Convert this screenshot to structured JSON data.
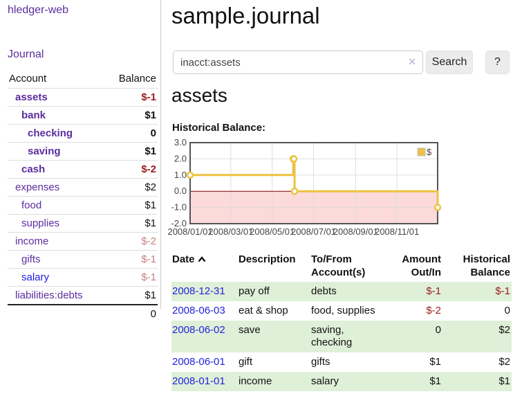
{
  "sidebar": {
    "brand": "hledger-web",
    "nav_journal": "Journal",
    "accounts_table": {
      "headers": {
        "account": "Account",
        "balance": "Balance"
      },
      "rows": [
        {
          "name": "assets",
          "depth": 1,
          "bold": true,
          "negative": true,
          "balance": "$-1"
        },
        {
          "name": "bank",
          "depth": 2,
          "bold": true,
          "negative": false,
          "balance": "$1"
        },
        {
          "name": "checking",
          "depth": 3,
          "bold": true,
          "negative": false,
          "balance": "0"
        },
        {
          "name": "saving",
          "depth": 3,
          "bold": true,
          "negative": false,
          "balance": "$1"
        },
        {
          "name": "cash",
          "depth": 2,
          "bold": true,
          "negative": true,
          "balance": "$-2"
        },
        {
          "name": "expenses",
          "depth": 1,
          "bold": false,
          "negative": false,
          "balance": "$2"
        },
        {
          "name": "food",
          "depth": 2,
          "bold": false,
          "negative": false,
          "balance": "$1"
        },
        {
          "name": "supplies",
          "depth": 2,
          "bold": false,
          "negative": false,
          "balance": "$1"
        },
        {
          "name": "income",
          "depth": 1,
          "bold": false,
          "negative": true,
          "balance": "$-2"
        },
        {
          "name": "gifts",
          "depth": 2,
          "bold": false,
          "negative": true,
          "balance": "$-1"
        },
        {
          "name": "salary",
          "depth": 2,
          "bold": false,
          "negative": true,
          "balance": "$-1",
          "link_style": "blue"
        },
        {
          "name": "liabilities:debts",
          "depth": 1,
          "bold": false,
          "negative": false,
          "balance": "$1"
        }
      ],
      "total": "0"
    }
  },
  "main": {
    "title": "sample.journal",
    "search": {
      "value": "inacct:assets",
      "clear_icon": "✕",
      "button": "Search",
      "help_button": "?"
    },
    "account_heading": "assets",
    "chart_label": "Historical Balance:",
    "register": {
      "headers": [
        "Date",
        "Description",
        "To/From Account(s)",
        "Amount Out/In",
        "Historical Balance"
      ],
      "sort_icon": "chevron-up-icon",
      "rows": [
        {
          "date": "2008-12-31",
          "description": "pay off",
          "accounts": "debts",
          "amount": "$-1",
          "amount_negative": true,
          "balance": "$-1",
          "balance_negative": true
        },
        {
          "date": "2008-06-03",
          "description": "eat & shop",
          "accounts": "food, supplies",
          "amount": "$-2",
          "amount_negative": true,
          "balance": "0",
          "balance_negative": false
        },
        {
          "date": "2008-06-02",
          "description": "save",
          "accounts": "saving, checking",
          "amount": "0",
          "amount_negative": false,
          "balance": "$2",
          "balance_negative": false
        },
        {
          "date": "2008-06-01",
          "description": "gift",
          "accounts": "gifts",
          "amount": "$1",
          "amount_negative": false,
          "balance": "$2",
          "balance_negative": false
        },
        {
          "date": "2008-01-01",
          "description": "income",
          "accounts": "salary",
          "amount": "$1",
          "amount_negative": false,
          "balance": "$1",
          "balance_negative": false
        }
      ]
    }
  },
  "chart_data": {
    "type": "line",
    "step": true,
    "title": "Historical Balance of assets",
    "series": [
      {
        "name": "$",
        "color": "#edc240",
        "points": [
          [
            "2008-01-01",
            1
          ],
          [
            "2008-06-01",
            2
          ],
          [
            "2008-06-02",
            2
          ],
          [
            "2008-06-03",
            0
          ],
          [
            "2008-12-31",
            -1
          ]
        ]
      }
    ],
    "x_range": [
      "2008-01-01",
      "2008-12-31"
    ],
    "ylim": [
      -2,
      3
    ],
    "y_ticks": [
      3.0,
      2.0,
      1.0,
      0.0,
      -1.0,
      -2.0
    ],
    "x_ticks": [
      "2008/01/01",
      "2008/03/01",
      "2008/05/01",
      "2008/07/01",
      "2008/09/01",
      "2008/11/01"
    ],
    "grid": true,
    "legend_position": "top-right",
    "negative_region_color": "#fcdada",
    "zero_line_color": "#8b0000",
    "border_color": "#545454",
    "grid_color": "#dddddd",
    "marker_fill": "#ffffff"
  },
  "colors": {
    "link_purple": "#5b2d9e",
    "link_blue": "#2222dd",
    "negative_strong": "#9b1c1c",
    "negative_muted": "#c47f7f",
    "row_green": "#dff0d8",
    "series_yellow": "#edc240"
  }
}
